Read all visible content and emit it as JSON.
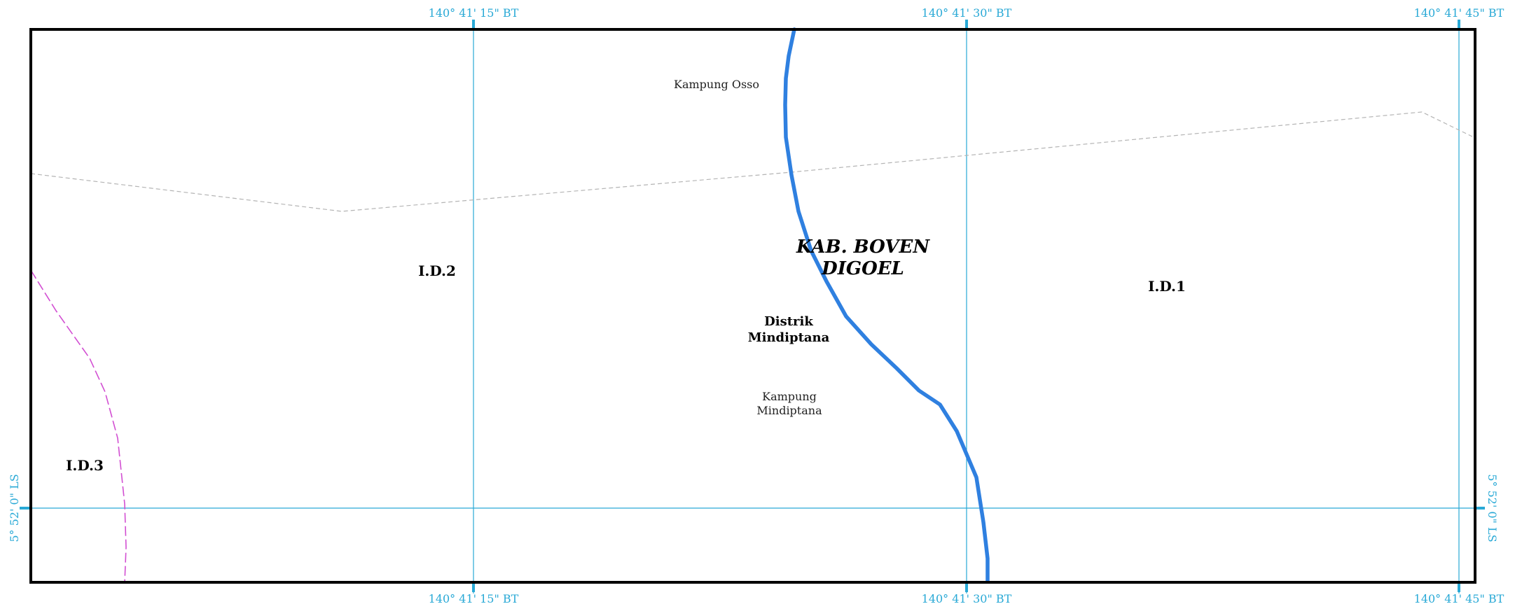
{
  "map": {
    "colors": {
      "grid": "#29a9d6",
      "frame": "#000000",
      "river": "#2f80e0",
      "boundary_gray": "#b4b4b4",
      "boundary_magenta": "#d24fd2"
    },
    "grid_labels": {
      "lon_1": "140° 41' 15\" BT",
      "lon_2": "140° 41' 30\" BT",
      "lon_3": "140° 41' 45\" BT",
      "lat_1": "5° 52' 0\" LS"
    },
    "regions": {
      "id1": "I.D.1",
      "id2": "I.D.2",
      "id3": "I.D.3"
    },
    "admin": {
      "line1": "KAB. BOVEN",
      "line2": "DIGOEL"
    },
    "district": {
      "line1": "Distrik",
      "line2": "Mindiptana"
    },
    "villages": {
      "osso": "Kampung Osso",
      "mindiptana_line1": "Kampung",
      "mindiptana_line2": "Mindiptana"
    }
  }
}
